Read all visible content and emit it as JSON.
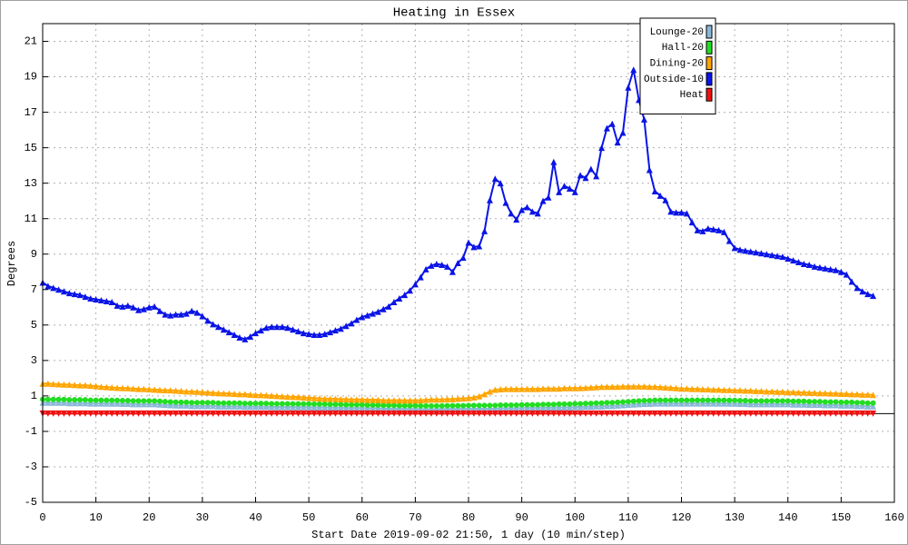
{
  "chart_data": {
    "type": "line",
    "title": "Heating in Essex",
    "x_label": "Start Date 2019-09-02 21:50, 1 day (10 min/step)",
    "y_label": "Degrees",
    "xlim": [
      0,
      160
    ],
    "xticks": [
      0,
      10,
      20,
      30,
      40,
      50,
      60,
      70,
      80,
      90,
      100,
      110,
      120,
      130,
      140,
      150,
      160
    ],
    "ylim": [
      -5,
      22
    ],
    "yticks": [
      -5,
      -3,
      -1,
      1,
      3,
      5,
      7,
      9,
      11,
      13,
      15,
      17,
      19,
      21
    ],
    "grid": true,
    "legend": "top-right",
    "x": [
      0,
      1,
      2,
      3,
      4,
      5,
      6,
      7,
      8,
      9,
      10,
      11,
      12,
      13,
      14,
      15,
      16,
      17,
      18,
      19,
      20,
      21,
      22,
      23,
      24,
      25,
      26,
      27,
      28,
      29,
      30,
      31,
      32,
      33,
      34,
      35,
      36,
      37,
      38,
      39,
      40,
      41,
      42,
      43,
      44,
      45,
      46,
      47,
      48,
      49,
      50,
      51,
      52,
      53,
      54,
      55,
      56,
      57,
      58,
      59,
      60,
      61,
      62,
      63,
      64,
      65,
      66,
      67,
      68,
      69,
      70,
      71,
      72,
      73,
      74,
      75,
      76,
      77,
      78,
      79,
      80,
      81,
      82,
      83,
      84,
      85,
      86,
      87,
      88,
      89,
      90,
      91,
      92,
      93,
      94,
      95,
      96,
      97,
      98,
      99,
      100,
      101,
      102,
      103,
      104,
      105,
      106,
      107,
      108,
      109,
      110,
      111,
      112,
      113,
      114,
      115,
      116,
      117,
      118,
      119,
      120,
      121,
      122,
      123,
      124,
      125,
      126,
      127,
      128,
      129,
      130,
      131,
      132,
      133,
      134,
      135,
      136,
      137,
      138,
      139,
      140,
      141,
      142,
      143,
      144,
      145,
      146,
      147,
      148,
      149,
      150,
      151,
      152,
      153,
      154,
      155,
      156
    ],
    "series": [
      {
        "name": "Lounge-20",
        "color": "#8ab8d8",
        "marker": "triangle",
        "values": [
          0.62,
          0.62,
          0.62,
          0.62,
          0.62,
          0.6,
          0.6,
          0.6,
          0.6,
          0.58,
          0.58,
          0.58,
          0.58,
          0.57,
          0.57,
          0.56,
          0.56,
          0.54,
          0.54,
          0.54,
          0.54,
          0.54,
          0.52,
          0.5,
          0.48,
          0.47,
          0.46,
          0.46,
          0.44,
          0.44,
          0.44,
          0.44,
          0.44,
          0.42,
          0.42,
          0.42,
          0.42,
          0.42,
          0.4,
          0.4,
          0.4,
          0.4,
          0.4,
          0.38,
          0.38,
          0.38,
          0.38,
          0.37,
          0.37,
          0.37,
          0.37,
          0.36,
          0.36,
          0.36,
          0.34,
          0.34,
          0.34,
          0.32,
          0.32,
          0.32,
          0.32,
          0.3,
          0.3,
          0.3,
          0.28,
          0.28,
          0.28,
          0.27,
          0.27,
          0.27,
          0.27,
          0.26,
          0.26,
          0.26,
          0.26,
          0.26,
          0.27,
          0.27,
          0.27,
          0.27,
          0.28,
          0.28,
          0.28,
          0.28,
          0.28,
          0.28,
          0.3,
          0.3,
          0.3,
          0.3,
          0.32,
          0.32,
          0.32,
          0.32,
          0.34,
          0.34,
          0.34,
          0.36,
          0.36,
          0.36,
          0.38,
          0.38,
          0.4,
          0.4,
          0.42,
          0.42,
          0.44,
          0.44,
          0.46,
          0.48,
          0.5,
          0.52,
          0.54,
          0.56,
          0.56,
          0.58,
          0.58,
          0.58,
          0.58,
          0.58,
          0.58,
          0.58,
          0.58,
          0.58,
          0.58,
          0.58,
          0.58,
          0.58,
          0.58,
          0.57,
          0.57,
          0.56,
          0.56,
          0.54,
          0.54,
          0.54,
          0.54,
          0.54,
          0.54,
          0.54,
          0.54,
          0.52,
          0.52,
          0.52,
          0.5,
          0.5,
          0.5,
          0.48,
          0.48,
          0.48,
          0.46,
          0.46,
          0.46,
          0.44,
          0.44,
          0.42,
          0.42
        ]
      },
      {
        "name": "Hall-20",
        "color": "#22dd22",
        "marker": "circle",
        "values": [
          0.8,
          0.8,
          0.8,
          0.8,
          0.8,
          0.78,
          0.78,
          0.78,
          0.78,
          0.76,
          0.76,
          0.76,
          0.76,
          0.75,
          0.75,
          0.74,
          0.74,
          0.72,
          0.72,
          0.72,
          0.72,
          0.72,
          0.7,
          0.68,
          0.66,
          0.65,
          0.64,
          0.64,
          0.62,
          0.62,
          0.62,
          0.62,
          0.62,
          0.6,
          0.6,
          0.6,
          0.6,
          0.6,
          0.58,
          0.58,
          0.58,
          0.58,
          0.58,
          0.56,
          0.56,
          0.56,
          0.56,
          0.55,
          0.55,
          0.55,
          0.55,
          0.54,
          0.54,
          0.54,
          0.52,
          0.52,
          0.52,
          0.5,
          0.5,
          0.5,
          0.5,
          0.48,
          0.48,
          0.48,
          0.46,
          0.46,
          0.46,
          0.45,
          0.45,
          0.45,
          0.45,
          0.44,
          0.44,
          0.44,
          0.44,
          0.44,
          0.45,
          0.45,
          0.45,
          0.45,
          0.46,
          0.46,
          0.46,
          0.46,
          0.46,
          0.46,
          0.48,
          0.48,
          0.48,
          0.48,
          0.5,
          0.5,
          0.5,
          0.5,
          0.52,
          0.52,
          0.52,
          0.54,
          0.54,
          0.54,
          0.56,
          0.56,
          0.58,
          0.58,
          0.6,
          0.6,
          0.62,
          0.62,
          0.64,
          0.66,
          0.68,
          0.7,
          0.72,
          0.74,
          0.74,
          0.76,
          0.76,
          0.76,
          0.76,
          0.76,
          0.76,
          0.76,
          0.76,
          0.76,
          0.76,
          0.76,
          0.76,
          0.76,
          0.76,
          0.75,
          0.75,
          0.74,
          0.74,
          0.72,
          0.72,
          0.72,
          0.72,
          0.72,
          0.72,
          0.72,
          0.72,
          0.7,
          0.7,
          0.7,
          0.68,
          0.68,
          0.68,
          0.66,
          0.66,
          0.66,
          0.64,
          0.64,
          0.64,
          0.62,
          0.62,
          0.6,
          0.6
        ]
      },
      {
        "name": "Dining-20",
        "color": "#ffa500",
        "marker": "triangle",
        "values": [
          1.7,
          1.7,
          1.68,
          1.66,
          1.65,
          1.64,
          1.62,
          1.6,
          1.6,
          1.58,
          1.56,
          1.52,
          1.5,
          1.48,
          1.46,
          1.45,
          1.44,
          1.42,
          1.4,
          1.4,
          1.38,
          1.36,
          1.34,
          1.33,
          1.32,
          1.3,
          1.28,
          1.26,
          1.25,
          1.24,
          1.22,
          1.2,
          1.18,
          1.16,
          1.15,
          1.14,
          1.12,
          1.1,
          1.1,
          1.08,
          1.06,
          1.05,
          1.04,
          1.02,
          1.0,
          0.98,
          0.96,
          0.95,
          0.94,
          0.92,
          0.9,
          0.88,
          0.86,
          0.85,
          0.84,
          0.84,
          0.82,
          0.82,
          0.8,
          0.8,
          0.8,
          0.78,
          0.78,
          0.78,
          0.76,
          0.76,
          0.76,
          0.76,
          0.75,
          0.75,
          0.76,
          0.76,
          0.78,
          0.8,
          0.8,
          0.8,
          0.82,
          0.82,
          0.85,
          0.86,
          0.88,
          0.92,
          0.98,
          1.1,
          1.25,
          1.35,
          1.38,
          1.4,
          1.4,
          1.4,
          1.4,
          1.4,
          1.4,
          1.4,
          1.42,
          1.42,
          1.42,
          1.42,
          1.44,
          1.44,
          1.44,
          1.45,
          1.46,
          1.48,
          1.5,
          1.52,
          1.52,
          1.52,
          1.52,
          1.54,
          1.54,
          1.54,
          1.54,
          1.54,
          1.52,
          1.52,
          1.5,
          1.48,
          1.46,
          1.44,
          1.42,
          1.42,
          1.4,
          1.4,
          1.38,
          1.38,
          1.36,
          1.36,
          1.34,
          1.34,
          1.32,
          1.32,
          1.3,
          1.3,
          1.28,
          1.28,
          1.26,
          1.26,
          1.24,
          1.24,
          1.22,
          1.22,
          1.2,
          1.2,
          1.18,
          1.18,
          1.16,
          1.16,
          1.14,
          1.14,
          1.12,
          1.12,
          1.1,
          1.1,
          1.08,
          1.08,
          1.06
        ]
      },
      {
        "name": "Outside-10",
        "color": "#0a14e6",
        "marker": "triangle",
        "values": [
          7.4,
          7.2,
          7.1,
          7.0,
          6.9,
          6.8,
          6.75,
          6.7,
          6.6,
          6.5,
          6.45,
          6.4,
          6.35,
          6.3,
          6.1,
          6.05,
          6.1,
          6.0,
          5.85,
          5.9,
          6.0,
          6.05,
          5.8,
          5.6,
          5.55,
          5.6,
          5.6,
          5.65,
          5.8,
          5.7,
          5.5,
          5.25,
          5.05,
          4.9,
          4.75,
          4.6,
          4.45,
          4.3,
          4.2,
          4.35,
          4.55,
          4.7,
          4.85,
          4.9,
          4.9,
          4.9,
          4.85,
          4.75,
          4.65,
          4.55,
          4.5,
          4.45,
          4.45,
          4.5,
          4.6,
          4.7,
          4.8,
          4.95,
          5.1,
          5.3,
          5.45,
          5.55,
          5.65,
          5.75,
          5.9,
          6.05,
          6.3,
          6.5,
          6.7,
          6.95,
          7.3,
          7.7,
          8.15,
          8.35,
          8.45,
          8.4,
          8.3,
          8.0,
          8.5,
          8.8,
          9.65,
          9.4,
          9.45,
          10.3,
          12.05,
          13.25,
          13.0,
          11.9,
          11.3,
          10.95,
          11.5,
          11.65,
          11.4,
          11.3,
          12.0,
          12.2,
          14.2,
          12.5,
          12.85,
          12.7,
          12.5,
          13.45,
          13.3,
          13.8,
          13.4,
          15.0,
          16.1,
          16.35,
          15.3,
          15.85,
          18.4,
          19.4,
          17.7,
          16.6,
          13.75,
          12.55,
          12.3,
          12.05,
          11.4,
          11.35,
          11.35,
          11.3,
          10.8,
          10.35,
          10.3,
          10.45,
          10.4,
          10.35,
          10.25,
          9.75,
          9.35,
          9.25,
          9.2,
          9.15,
          9.1,
          9.05,
          9.0,
          8.95,
          8.9,
          8.85,
          8.75,
          8.65,
          8.55,
          8.45,
          8.4,
          8.3,
          8.25,
          8.2,
          8.15,
          8.1,
          8.0,
          7.85,
          7.45,
          7.1,
          6.9,
          6.75,
          6.65
        ]
      },
      {
        "name": "Heat",
        "color": "#ee1111",
        "marker": "triangle-down",
        "values": [
          0,
          0,
          0,
          0,
          0,
          0,
          0,
          0,
          0,
          0,
          0,
          0,
          0,
          0,
          0,
          0,
          0,
          0,
          0,
          0,
          0,
          0,
          0,
          0,
          0,
          0,
          0,
          0,
          0,
          0,
          0,
          0,
          0,
          0,
          0,
          0,
          0,
          0,
          0,
          0,
          0,
          0,
          0,
          0,
          0,
          0,
          0,
          0,
          0,
          0,
          0,
          0,
          0,
          0,
          0,
          0,
          0,
          0,
          0,
          0,
          0,
          0,
          0,
          0,
          0,
          0,
          0,
          0,
          0,
          0,
          0,
          0,
          0,
          0,
          0,
          0,
          0,
          0,
          0,
          0,
          0,
          0,
          0,
          0,
          0,
          0,
          0,
          0,
          0,
          0,
          0,
          0,
          0,
          0,
          0,
          0,
          0,
          0,
          0,
          0,
          0,
          0,
          0,
          0,
          0,
          0,
          0,
          0,
          0,
          0,
          0,
          0,
          0,
          0,
          0,
          0,
          0,
          0,
          0,
          0,
          0,
          0,
          0,
          0,
          0,
          0,
          0,
          0,
          0,
          0,
          0,
          0,
          0,
          0,
          0,
          0,
          0,
          0,
          0,
          0,
          0,
          0,
          0,
          0,
          0,
          0,
          0,
          0,
          0,
          0,
          0,
          0,
          0,
          0,
          0,
          0,
          0
        ]
      }
    ]
  }
}
